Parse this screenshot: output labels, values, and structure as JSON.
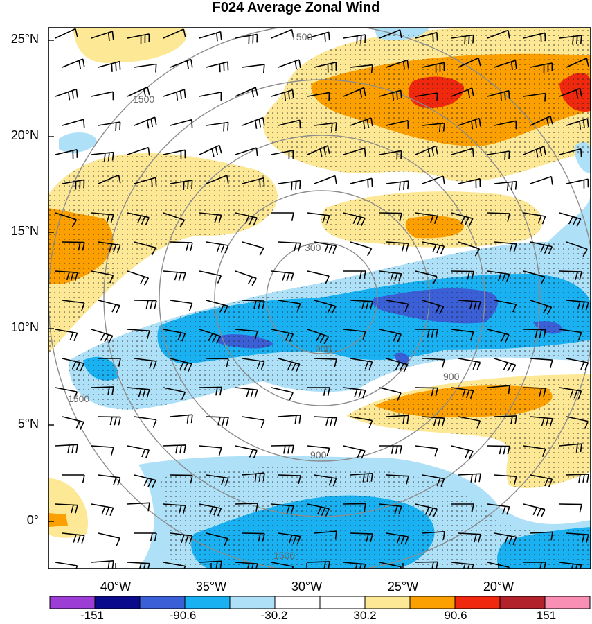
{
  "chart_data": {
    "type": "heatmap",
    "title": "F024 Average Zonal Wind",
    "x_ticks": [
      "40°W",
      "35°W",
      "30°W",
      "25°W",
      "20°W"
    ],
    "y_ticks": [
      "25°N",
      "20°N",
      "15°N",
      "10°N",
      "5°N",
      "0°"
    ],
    "xlim": [
      -43.5,
      -15.5
    ],
    "ylim": [
      -2.3,
      25.8
    ],
    "colorbar": {
      "labels": [
        "-151",
        "-90.6",
        "-30.2",
        "30.2",
        "90.6",
        "151"
      ],
      "colors": [
        "#9c3dd6",
        "#0a0a8c",
        "#3b5fd6",
        "#1ab1f2",
        "#aee1f7",
        "#ffffff",
        "#ffffff",
        "#fde896",
        "#fca002",
        "#f0290e",
        "#b2222b",
        "#f98fb5"
      ]
    },
    "contour_labels": [
      "300",
      "900",
      "1500"
    ],
    "features": [
      "stippling",
      "wind barbs",
      "range rings"
    ]
  }
}
